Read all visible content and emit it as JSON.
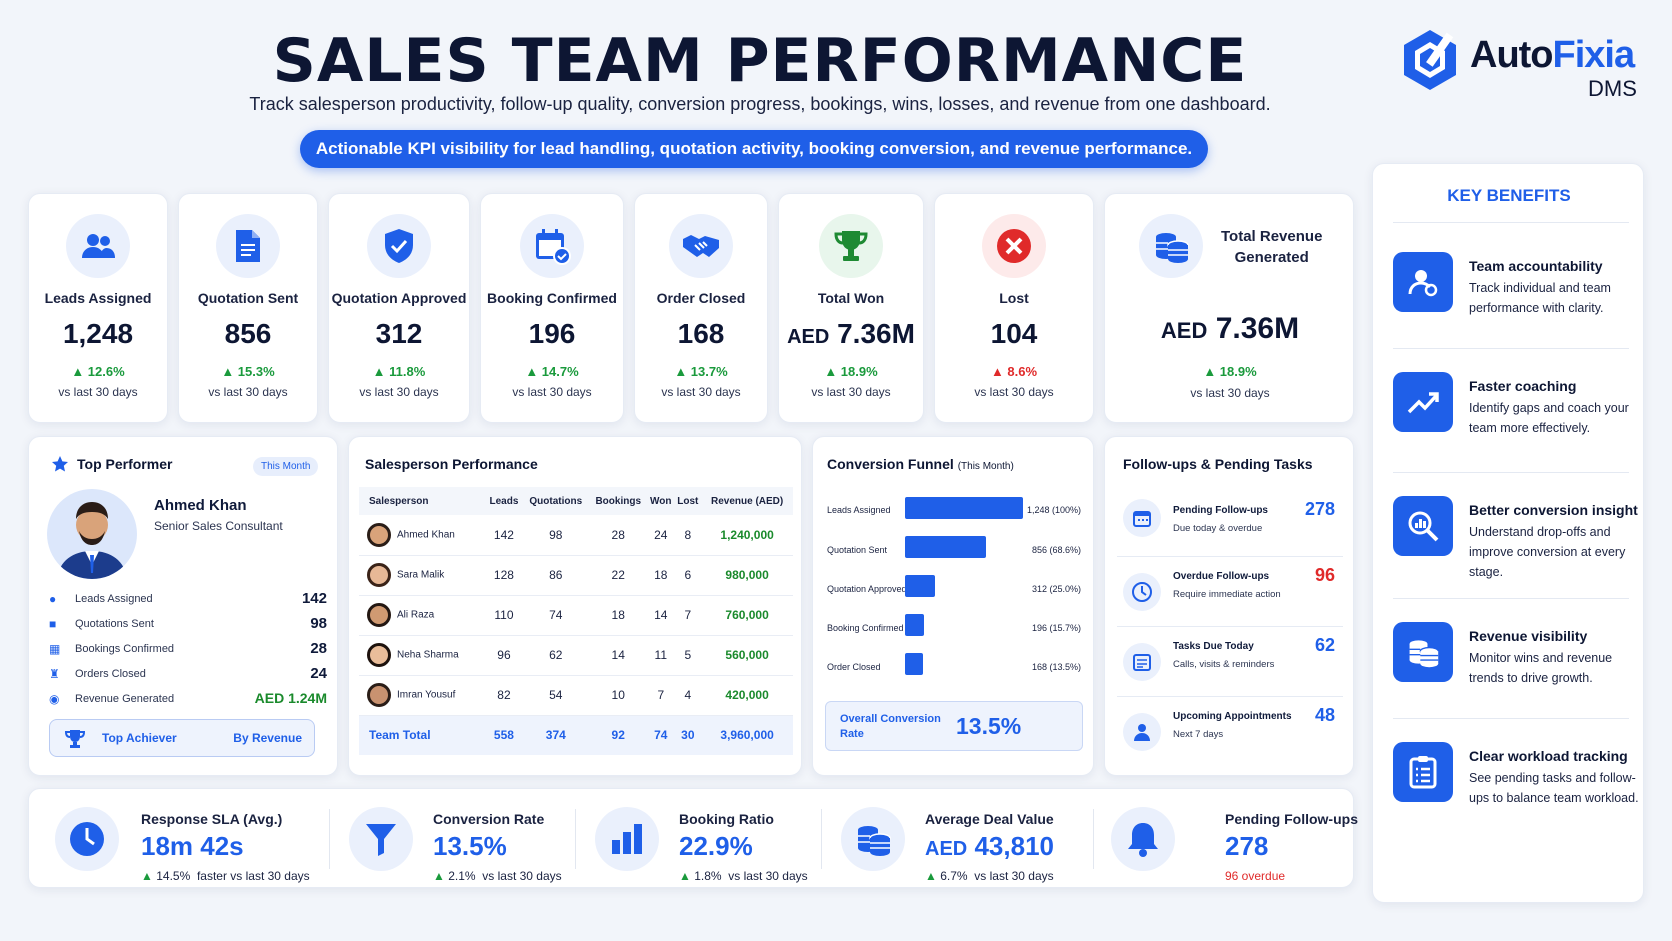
{
  "header": {
    "title": "SALES TEAM PERFORMANCE",
    "subtitle": "Track salesperson productivity, follow-up quality, conversion progress, bookings, wins, losses, and revenue from one dashboard.",
    "banner": "Actionable KPI visibility for lead handling, quotation activity, booking conversion, and revenue performance."
  },
  "logo": {
    "name_a": "Auto",
    "name_b": "Fixia",
    "suffix": "DMS"
  },
  "colors": {
    "accent": "#1f5fe8",
    "positive": "#1a9a3c",
    "negative": "#e02a2a",
    "dark": "#0d1633"
  },
  "kpis": [
    {
      "label": "Leads Assigned",
      "value": "1,248",
      "change": "12.6%",
      "direction": "up",
      "sub": "vs last 30 days",
      "icon": "users-icon"
    },
    {
      "label": "Quotation Sent",
      "value": "856",
      "change": "15.3%",
      "direction": "up",
      "sub": "vs last 30 days",
      "icon": "document-icon"
    },
    {
      "label": "Quotation Approved",
      "value": "312",
      "change": "11.8%",
      "direction": "up",
      "sub": "vs last 30 days",
      "icon": "shield-check-icon"
    },
    {
      "label": "Booking Confirmed",
      "value": "196",
      "change": "14.7%",
      "direction": "up",
      "sub": "vs last 30 days",
      "icon": "calendar-check-icon"
    },
    {
      "label": "Order Closed",
      "value": "168",
      "change": "13.7%",
      "direction": "up",
      "sub": "vs last 30 days",
      "icon": "handshake-icon"
    },
    {
      "label": "Total Won",
      "value": "7.36M",
      "currency": "AED",
      "change": "18.9%",
      "direction": "up",
      "sub": "vs last 30 days",
      "icon": "trophy-icon"
    },
    {
      "label": "Lost",
      "value": "104",
      "change": "8.6%",
      "direction": "up",
      "sub": "vs last 30 days",
      "icon": "x-circle-icon"
    },
    {
      "label_line1": "Total Revenue",
      "label_line2": "Generated",
      "value": "7.36M",
      "currency": "AED",
      "change": "18.9%",
      "direction": "up",
      "sub": "vs last 30 days",
      "icon": "coins-icon"
    }
  ],
  "top_performer": {
    "title": "Top Performer",
    "badge": "This Month",
    "name": "Ahmed Khan",
    "role": "Senior Sales Consultant",
    "stats": [
      {
        "label": "Leads Assigned",
        "value": "142"
      },
      {
        "label": "Quotations Sent",
        "value": "98"
      },
      {
        "label": "Bookings Confirmed",
        "value": "28"
      },
      {
        "label": "Orders Closed",
        "value": "24"
      },
      {
        "label": "Revenue Generated",
        "value": "AED 1.24M"
      }
    ],
    "footer_left": "Top Achiever",
    "footer_right": "By Revenue"
  },
  "salesperson_performance": {
    "title": "Salesperson Performance",
    "columns": [
      "Salesperson",
      "Leads",
      "Quotations",
      "Bookings",
      "Won",
      "Lost",
      "Revenue (AED)"
    ],
    "rows": [
      {
        "name": "Ahmed Khan",
        "leads": "142",
        "quotations": "98",
        "bookings": "28",
        "won": "24",
        "lost": "8",
        "revenue": "1,240,000"
      },
      {
        "name": "Sara Malik",
        "leads": "128",
        "quotations": "86",
        "bookings": "22",
        "won": "18",
        "lost": "6",
        "revenue": "980,000"
      },
      {
        "name": "Ali Raza",
        "leads": "110",
        "quotations": "74",
        "bookings": "18",
        "won": "14",
        "lost": "7",
        "revenue": "760,000"
      },
      {
        "name": "Neha Sharma",
        "leads": "96",
        "quotations": "62",
        "bookings": "14",
        "won": "11",
        "lost": "5",
        "revenue": "560,000"
      },
      {
        "name": "Imran Yousuf",
        "leads": "82",
        "quotations": "54",
        "bookings": "10",
        "won": "7",
        "lost": "4",
        "revenue": "420,000"
      }
    ],
    "total": {
      "name": "Team Total",
      "leads": "558",
      "quotations": "374",
      "bookings": "92",
      "won": "74",
      "lost": "30",
      "revenue": "3,960,000"
    }
  },
  "funnel": {
    "title": "Conversion Funnel",
    "period": "(This Month)",
    "stages": [
      {
        "label": "Leads Assigned",
        "value": 1248,
        "display": "1,248 (100%)"
      },
      {
        "label": "Quotation Sent",
        "value": 856,
        "display": "856 (68.6%)"
      },
      {
        "label": "Quotation Approved",
        "value": 312,
        "display": "312 (25.0%)"
      },
      {
        "label": "Booking Confirmed",
        "value": 196,
        "display": "196 (15.7%)"
      },
      {
        "label": "Order Closed",
        "value": 168,
        "display": "168 (13.5%)"
      }
    ],
    "overall_label_1": "Overall Conversion",
    "overall_label_2": "Rate",
    "overall_value": "13.5%"
  },
  "followups": {
    "title": "Follow-ups & Pending Tasks",
    "items": [
      {
        "label": "Pending Follow-ups",
        "sub": "Due today & overdue",
        "value": "278",
        "color": "#1f5fe8",
        "icon": "calendar-icon"
      },
      {
        "label": "Overdue Follow-ups",
        "sub": "Require immediate action",
        "value": "96",
        "color": "#e02a2a",
        "icon": "clock-icon"
      },
      {
        "label": "Tasks Due Today",
        "sub": "Calls, visits & reminders",
        "value": "62",
        "color": "#1f5fe8",
        "icon": "checklist-calendar-icon"
      },
      {
        "label": "Upcoming Appointments",
        "sub": "Next 7 days",
        "value": "48",
        "color": "#1f5fe8",
        "icon": "person-icon"
      }
    ]
  },
  "bottom_kpis": [
    {
      "label": "Response SLA (Avg.)",
      "value": "18m 42s",
      "change": "14.5%",
      "change_text": "faster vs last 30 days",
      "icon": "clock-icon"
    },
    {
      "label": "Conversion Rate",
      "value": "13.5%",
      "change": "2.1%",
      "change_text": "vs last 30 days",
      "icon": "funnel-icon"
    },
    {
      "label": "Booking Ratio",
      "value": "22.9%",
      "change": "1.8%",
      "change_text": "vs last 30 days",
      "icon": "bar-chart-icon"
    },
    {
      "label": "Average Deal Value",
      "value": "43,810",
      "currency": "AED",
      "change": "6.7%",
      "change_text": "vs last 30 days",
      "icon": "coins-icon"
    },
    {
      "label": "Pending Follow-ups",
      "value": "278",
      "note": "96 overdue",
      "icon": "bell-icon"
    }
  ],
  "benefits": {
    "title": "KEY BENEFITS",
    "items": [
      {
        "title": "Team accountability",
        "desc": "Track individual and team performance with clarity.",
        "icon": "user-settings-icon"
      },
      {
        "title": "Faster coaching",
        "desc": "Identify gaps and coach your team more effectively.",
        "icon": "trend-up-icon"
      },
      {
        "title": "Better conversion insight",
        "desc": "Understand drop-offs and improve conversion at every stage.",
        "icon": "magnifier-chart-icon"
      },
      {
        "title": "Revenue visibility",
        "desc": "Monitor wins and revenue trends to drive growth.",
        "icon": "coins-icon"
      },
      {
        "title": "Clear workload tracking",
        "desc": "See pending tasks and follow-ups to balance team workload.",
        "icon": "clipboard-icon"
      }
    ]
  }
}
